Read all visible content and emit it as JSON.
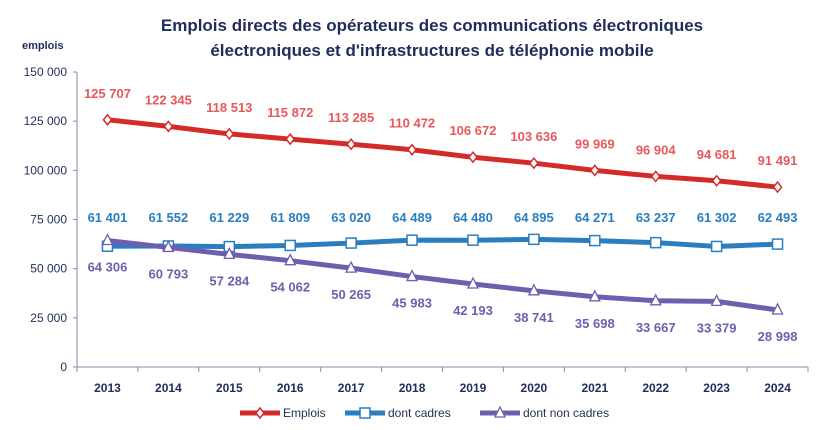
{
  "chart_data": {
    "type": "line",
    "title_lines": [
      "Emplois directs des opérateurs des communications électroniques",
      "électroniques et d'infrastructures de téléphonie mobile"
    ],
    "ylabel": "emplois",
    "xlabel": "",
    "ylim": [
      0,
      150000
    ],
    "yticks": [
      0,
      25000,
      50000,
      75000,
      100000,
      125000,
      150000
    ],
    "ytick_labels": [
      "0",
      "25 000",
      "50 000",
      "75 000",
      "100 000",
      "125 000",
      "150 000"
    ],
    "categories": [
      "2013",
      "2014",
      "2015",
      "2016",
      "2017",
      "2018",
      "2019",
      "2020",
      "2021",
      "2022",
      "2023",
      "2024"
    ],
    "grid": false,
    "legend_position": "bottom",
    "series": [
      {
        "name": "Emplois",
        "color": "#d42a2a",
        "label_color": "#e8585a",
        "marker": "diamond",
        "values": [
          125707,
          122345,
          118513,
          115872,
          113285,
          110472,
          106672,
          103636,
          99969,
          96904,
          94681,
          91491
        ],
        "labels": [
          "125 707",
          "122 345",
          "118 513",
          "115 872",
          "113 285",
          "110 472",
          "106 672",
          "103 636",
          "99 969",
          "96 904",
          "94 681",
          "91 491"
        ]
      },
      {
        "name": "dont cadres",
        "color": "#2a7ec0",
        "label_color": "#2a7ec0",
        "marker": "square",
        "values": [
          61401,
          61552,
          61229,
          61809,
          63020,
          64489,
          64480,
          64895,
          64271,
          63237,
          61302,
          62493
        ],
        "labels": [
          "61 401",
          "61 552",
          "61 229",
          "61 809",
          "63 020",
          "64 489",
          "64 480",
          "64 895",
          "64 271",
          "63 237",
          "61 302",
          "62 493"
        ]
      },
      {
        "name": "dont non cadres",
        "color": "#6e5fae",
        "label_color": "#6e5fae",
        "marker": "triangle",
        "values": [
          64306,
          60793,
          57284,
          54062,
          50265,
          45983,
          42193,
          38741,
          35698,
          33667,
          33379,
          28998
        ],
        "labels": [
          "64 306",
          "60 793",
          "57 284",
          "54 062",
          "50 265",
          "45 983",
          "42 193",
          "38 741",
          "35 698",
          "33 667",
          "33 379",
          "28 998"
        ]
      }
    ]
  }
}
